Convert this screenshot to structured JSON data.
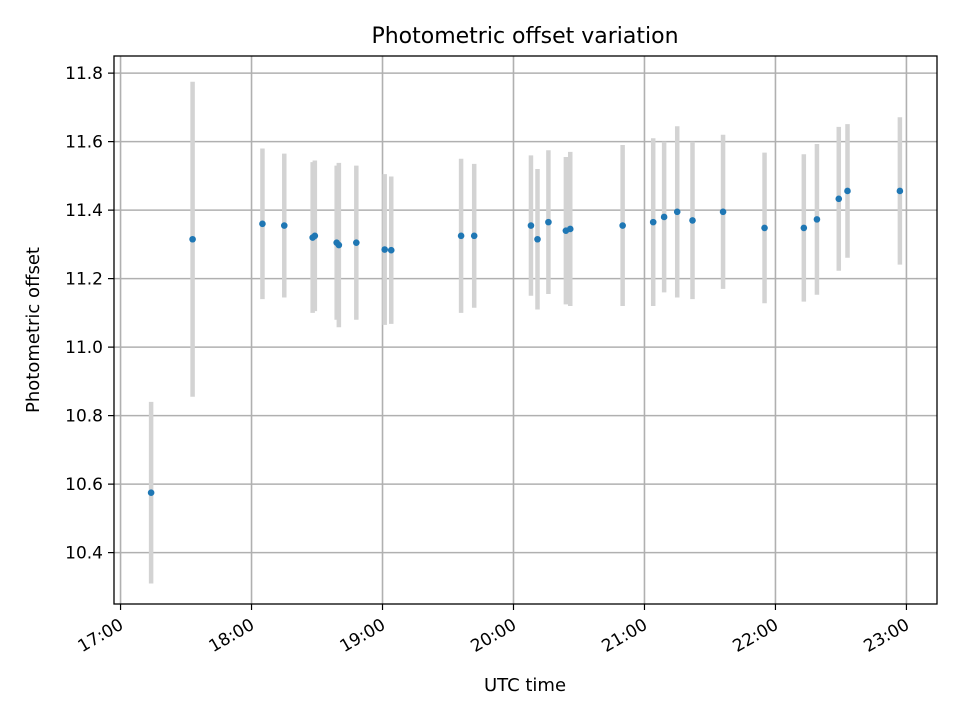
{
  "chart_data": {
    "type": "scatter",
    "title": "Photometric offset variation",
    "xlabel": "UTC time",
    "ylabel": "Photometric offset",
    "x_unit": "UTC time (HH:MM)",
    "xlim": [
      "16:57",
      "23:14"
    ],
    "ylim": [
      10.25,
      11.85
    ],
    "xticks": [
      "17:00",
      "18:00",
      "19:00",
      "20:00",
      "21:00",
      "22:00",
      "23:00"
    ],
    "yticks": [
      "10.4",
      "10.6",
      "10.8",
      "11.0",
      "11.2",
      "11.4",
      "11.6",
      "11.8"
    ],
    "grid": true,
    "colors": {
      "points": "#1f77b4",
      "errorbars": "#d3d3d3",
      "grid": "#b0b0b0"
    },
    "series": [
      {
        "points": [
          {
            "x": "17:14",
            "y": 10.575,
            "err": 0.265
          },
          {
            "x": "17:33",
            "y": 11.315,
            "err": 0.46
          },
          {
            "x": "18:05",
            "y": 11.36,
            "err": 0.22
          },
          {
            "x": "18:15",
            "y": 11.355,
            "err": 0.21
          },
          {
            "x": "18:28",
            "y": 11.32,
            "err": 0.22
          },
          {
            "x": "18:29",
            "y": 11.325,
            "err": 0.22
          },
          {
            "x": "18:39",
            "y": 11.305,
            "err": 0.225
          },
          {
            "x": "18:40",
            "y": 11.298,
            "err": 0.24
          },
          {
            "x": "18:48",
            "y": 11.305,
            "err": 0.225
          },
          {
            "x": "19:01",
            "y": 11.285,
            "err": 0.22
          },
          {
            "x": "19:04",
            "y": 11.283,
            "err": 0.215
          },
          {
            "x": "19:36",
            "y": 11.325,
            "err": 0.225
          },
          {
            "x": "19:42",
            "y": 11.325,
            "err": 0.21
          },
          {
            "x": "20:08",
            "y": 11.355,
            "err": 0.205
          },
          {
            "x": "20:11",
            "y": 11.315,
            "err": 0.205
          },
          {
            "x": "20:16",
            "y": 11.365,
            "err": 0.21
          },
          {
            "x": "20:24",
            "y": 11.34,
            "err": 0.215
          },
          {
            "x": "20:26",
            "y": 11.345,
            "err": 0.225
          },
          {
            "x": "20:50",
            "y": 11.355,
            "err": 0.235
          },
          {
            "x": "21:04",
            "y": 11.365,
            "err": 0.245
          },
          {
            "x": "21:09",
            "y": 11.38,
            "err": 0.22
          },
          {
            "x": "21:15",
            "y": 11.395,
            "err": 0.25
          },
          {
            "x": "21:22",
            "y": 11.37,
            "err": 0.23
          },
          {
            "x": "21:36",
            "y": 11.395,
            "err": 0.225
          },
          {
            "x": "21:55",
            "y": 11.348,
            "err": 0.22
          },
          {
            "x": "22:13",
            "y": 11.348,
            "err": 0.215
          },
          {
            "x": "22:19",
            "y": 11.373,
            "err": 0.22
          },
          {
            "x": "22:29",
            "y": 11.433,
            "err": 0.21
          },
          {
            "x": "22:33",
            "y": 11.456,
            "err": 0.195
          },
          {
            "x": "22:57",
            "y": 11.456,
            "err": 0.215
          }
        ]
      }
    ]
  }
}
